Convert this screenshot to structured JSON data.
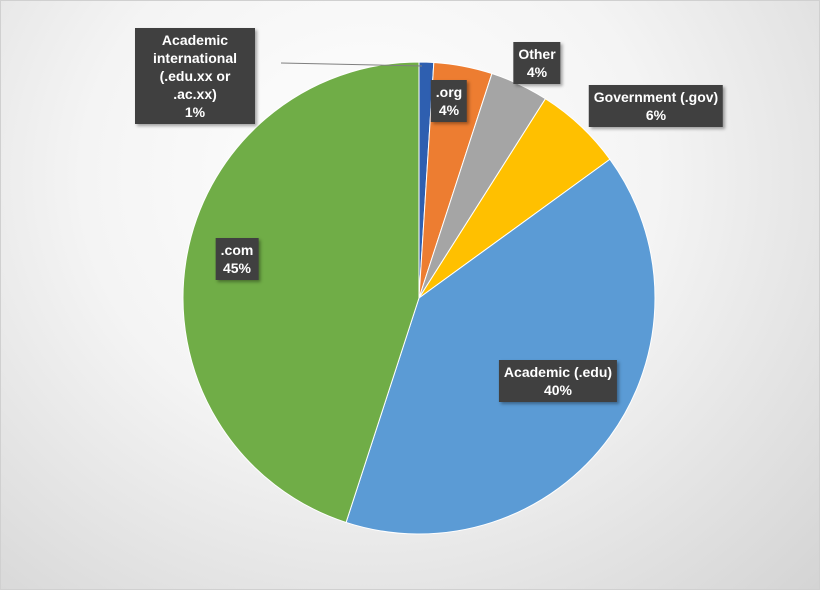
{
  "chart_data": {
    "type": "pie",
    "categories": [
      "Academic international (.edu.xx or .ac.xx)",
      ".org",
      "Other",
      "Government (.gov)",
      "Academic (.edu)",
      ".com"
    ],
    "values": [
      1,
      4,
      4,
      6,
      40,
      45
    ],
    "value_labels": [
      "1%",
      "4%",
      "4%",
      "6%",
      "40%",
      "45%"
    ],
    "colors": [
      "#2e5fb0",
      "#ed7d31",
      "#a5a5a5",
      "#ffc000",
      "#5b9bd5",
      "#70ad47"
    ]
  }
}
